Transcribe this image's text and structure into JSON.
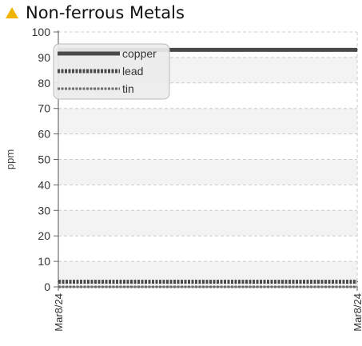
{
  "header": {
    "title": "Non-ferrous Metals",
    "title_icon": "warning-triangle-icon",
    "icon_color": "#f0b400"
  },
  "chart_data": {
    "type": "line",
    "title": "Non-ferrous Metals",
    "xlabel": "",
    "ylabel": "ppm",
    "x": [
      "Mar8/24",
      "Mar8/24"
    ],
    "ylim": [
      0,
      100
    ],
    "yticks": [
      0,
      10,
      20,
      30,
      40,
      50,
      60,
      70,
      80,
      90,
      100
    ],
    "grid": true,
    "legend_position": "top-left",
    "series": [
      {
        "name": "copper",
        "values": [
          93,
          93
        ],
        "color": "#4a4a4a",
        "style": "solid"
      },
      {
        "name": "lead",
        "values": [
          2,
          2
        ],
        "color": "#4a4a4a",
        "style": "dotted"
      },
      {
        "name": "tin",
        "values": [
          0,
          0
        ],
        "color": "#6a6a6a",
        "style": "dashed"
      }
    ]
  }
}
